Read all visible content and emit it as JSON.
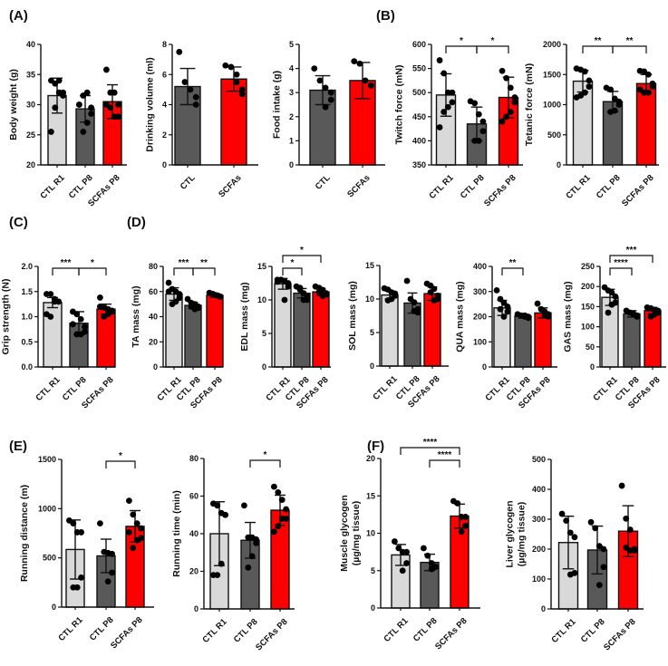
{
  "colors": {
    "CTL R1": "#d9d9d9",
    "CTL P8": "#595959",
    "SCFAs P8": "#ff0000",
    "CTL": "#595959",
    "SCFAs": "#ff0000",
    "point": "#000000"
  },
  "panel_labels": [
    "(A)",
    "(B)",
    "(C)",
    "(D)",
    "(E)",
    "(F)"
  ],
  "chart_data": [
    {
      "type": "bar",
      "panel": "(A)",
      "ylabel": "Body weight (g)",
      "ylim": [
        20,
        40
      ],
      "yticks": [
        20,
        25,
        30,
        35,
        40
      ],
      "categories": [
        "CTL R1",
        "CTL P8",
        "SCFAs P8"
      ],
      "means": [
        31.5,
        29.3,
        30.5
      ],
      "sd": [
        2.9,
        2.2,
        2.8
      ],
      "points": [
        [
          34,
          33.5,
          34,
          32,
          31.5,
          32,
          29.5,
          25.5
        ],
        [
          30,
          31.5,
          32,
          29.5,
          28.5,
          27,
          25.5,
          30
        ],
        [
          35.8,
          32,
          32,
          30,
          28,
          28,
          29.5,
          30
        ]
      ],
      "significance": []
    },
    {
      "type": "bar",
      "panel": "(A)",
      "ylabel": "Drinking volume (ml)",
      "ylim": [
        0,
        8
      ],
      "yticks": [
        0,
        2,
        4,
        6,
        8
      ],
      "categories": [
        "CTL",
        "SCFAs"
      ],
      "means": [
        5.2,
        5.7
      ],
      "sd": [
        1.2,
        0.8
      ],
      "points": [
        [
          7.5,
          5.5,
          5,
          4.5,
          4
        ],
        [
          6.6,
          6.5,
          6,
          5,
          4.7,
          5.5
        ]
      ],
      "significance": []
    },
    {
      "type": "bar",
      "panel": "(A)",
      "ylabel": "Food intake (g)",
      "ylim": [
        0,
        5
      ],
      "yticks": [
        0,
        1,
        2,
        3,
        4,
        5
      ],
      "categories": [
        "CTL",
        "SCFAs"
      ],
      "means": [
        3.1,
        3.5
      ],
      "sd": [
        0.6,
        0.75
      ],
      "points": [
        [
          4,
          3.5,
          3.2,
          3,
          2.7,
          2.4
        ],
        [
          4.3,
          4.2,
          3.5,
          3.3,
          3.3
        ]
      ],
      "significance": []
    },
    {
      "type": "bar",
      "panel": "(B)",
      "ylabel": "Twitch force (mN)",
      "ylim": [
        350,
        600
      ],
      "yticks": [
        350,
        400,
        450,
        500,
        550,
        600
      ],
      "categories": [
        "CTL R1",
        "CTL P8",
        "SCFAs P8"
      ],
      "means": [
        495,
        435,
        490
      ],
      "sd": [
        44,
        35,
        42
      ],
      "points": [
        [
          567,
          540,
          500,
          500,
          480,
          470,
          460,
          428
        ],
        [
          482,
          478,
          455,
          440,
          420,
          400,
          400
        ],
        [
          545,
          530,
          510,
          490,
          480,
          460,
          450,
          440
        ]
      ],
      "significance": [
        {
          "from": 0,
          "to": 1,
          "label": "*"
        },
        {
          "from": 1,
          "to": 2,
          "label": "*"
        }
      ]
    },
    {
      "type": "bar",
      "panel": "(B)",
      "ylabel": "Tetanic force (mN)",
      "ylim": [
        0,
        2000
      ],
      "yticks": [
        0,
        500,
        1000,
        1500,
        2000
      ],
      "categories": [
        "CTL R1",
        "CTL P8",
        "SCFAs P8"
      ],
      "means": [
        1390,
        1050,
        1350
      ],
      "sd": [
        180,
        170,
        150
      ],
      "points": [
        [
          1600,
          1580,
          1550,
          1400,
          1300,
          1200,
          1150,
          1120
        ],
        [
          1280,
          1250,
          1100,
          1050,
          1000,
          900,
          880
        ],
        [
          1560,
          1550,
          1500,
          1350,
          1300,
          1200,
          1200,
          1250
        ]
      ],
      "significance": [
        {
          "from": 0,
          "to": 1,
          "label": "**"
        },
        {
          "from": 1,
          "to": 2,
          "label": "**"
        }
      ]
    },
    {
      "type": "bar",
      "panel": "(C)",
      "ylabel": "Grip strength (N)",
      "ylim": [
        0,
        2
      ],
      "yticks": [
        "0.0",
        "0.5",
        "1.0",
        "1.5",
        "2.0"
      ],
      "categories": [
        "CTL R1",
        "CTL P8",
        "SCFAs P8"
      ],
      "means": [
        1.28,
        0.87,
        1.15
      ],
      "sd": [
        0.1,
        0.23,
        0.1
      ],
      "points": [
        [
          1.45,
          1.45,
          1.35,
          1.3,
          1.3,
          1.3,
          1.0,
          1.05
        ],
        [
          1.1,
          1.05,
          0.95,
          0.8,
          0.7,
          0.65,
          0.65,
          0.85
        ],
        [
          1.38,
          1.18,
          1.15,
          1.12,
          1.1,
          1.05,
          1.0,
          1.2
        ]
      ],
      "significance": [
        {
          "from": 0,
          "to": 1,
          "label": "***"
        },
        {
          "from": 1,
          "to": 2,
          "label": "*"
        }
      ]
    },
    {
      "type": "bar",
      "panel": "(D)",
      "ylabel": "TA mass (mg)",
      "ylim": [
        0,
        80
      ],
      "yticks": [
        0,
        20,
        40,
        60,
        80
      ],
      "categories": [
        "CTL R1",
        "CTL P8",
        "SCFAs P8"
      ],
      "means": [
        58,
        49,
        57
      ],
      "sd": [
        5,
        2.5,
        1.5
      ],
      "points": [
        [
          67,
          62,
          60,
          58,
          55,
          52,
          50,
          60
        ],
        [
          54,
          51,
          50,
          48,
          47,
          46,
          48
        ],
        [
          59,
          58,
          57,
          56,
          56,
          57,
          58
        ]
      ],
      "significance": [
        {
          "from": 0,
          "to": 1,
          "label": "***"
        },
        {
          "from": 1,
          "to": 2,
          "label": "**"
        }
      ]
    },
    {
      "type": "bar",
      "panel": "(D)",
      "ylabel": "EDL mass (mg)",
      "ylim": [
        0,
        15
      ],
      "yticks": [
        0,
        5,
        10,
        15
      ],
      "categories": [
        "CTL R1",
        "CTL P8",
        "SCFAs P8"
      ],
      "means": [
        12.4,
        11,
        11.2
      ],
      "sd": [
        0.8,
        0.7,
        0.5
      ],
      "points": [
        [
          13,
          13,
          12.8,
          12.5,
          12,
          10,
          13,
          12.7
        ],
        [
          12,
          11.8,
          11,
          10.5,
          10,
          10,
          11.5
        ],
        [
          12,
          11.8,
          11.5,
          11,
          10.8,
          10.6,
          11.2
        ]
      ],
      "significance": [
        {
          "from": 0,
          "to": 1,
          "label": "*"
        },
        {
          "from": 0,
          "to": 2,
          "label": "*"
        }
      ]
    },
    {
      "type": "bar",
      "panel": "(D)",
      "ylabel": "SOL mass (mg)",
      "ylim": [
        0,
        15
      ],
      "yticks": [
        0,
        5,
        10,
        15
      ],
      "categories": [
        "CTL R1",
        "CTL P8",
        "SCFAs P8"
      ],
      "means": [
        10.6,
        9.4,
        10.8
      ],
      "sd": [
        0.6,
        1.5,
        1.0
      ],
      "points": [
        [
          11.6,
          11.4,
          11,
          10.8,
          10.5,
          10,
          9.8
        ],
        [
          12.7,
          10,
          9.5,
          8.5,
          8,
          8.2
        ],
        [
          12.3,
          12,
          11.5,
          10.5,
          10,
          9.8,
          11
        ]
      ],
      "significance": []
    },
    {
      "type": "bar",
      "panel": "(D)",
      "ylabel": "QUA mass (mg)",
      "ylim": [
        0,
        400
      ],
      "yticks": [
        0,
        100,
        200,
        300,
        400
      ],
      "categories": [
        "CTL R1",
        "CTL P8",
        "SCFAs P8"
      ],
      "means": [
        235,
        202,
        215
      ],
      "sd": [
        30,
        8,
        20
      ],
      "points": [
        [
          305,
          270,
          255,
          240,
          220,
          200,
          230
        ],
        [
          210,
          205,
          200,
          195,
          200,
          205
        ],
        [
          252,
          230,
          220,
          210,
          200,
          205
        ]
      ],
      "significance": [
        {
          "from": 0,
          "to": 1,
          "label": "**"
        }
      ]
    },
    {
      "type": "bar",
      "panel": "(D)",
      "ylabel": "GAS mass (mg)",
      "ylim": [
        0,
        250
      ],
      "yticks": [
        0,
        50,
        100,
        150,
        200,
        250
      ],
      "categories": [
        "CTL R1",
        "CTL P8",
        "SCFAs P8"
      ],
      "means": [
        173,
        132,
        140
      ],
      "sd": [
        20,
        8,
        8
      ],
      "points": [
        [
          198,
          190,
          185,
          175,
          160,
          155,
          135
        ],
        [
          140,
          135,
          130,
          128,
          125,
          132
        ],
        [
          148,
          146,
          142,
          140,
          135,
          130,
          125
        ]
      ],
      "significance": [
        {
          "from": 0,
          "to": 1,
          "label": "****"
        },
        {
          "from": 0,
          "to": 2,
          "label": "***"
        }
      ]
    },
    {
      "type": "bar",
      "panel": "(E)",
      "ylabel": "Running distance (m)",
      "ylim": [
        0,
        1500
      ],
      "yticks": [
        0,
        500,
        1000,
        1500
      ],
      "categories": [
        "CTL R1",
        "CTL P8",
        "SCFAs P8"
      ],
      "means": [
        585,
        520,
        820
      ],
      "sd": [
        300,
        170,
        160
      ],
      "points": [
        [
          880,
          850,
          760,
          760,
          300,
          200,
          200
        ],
        [
          850,
          560,
          550,
          540,
          350,
          260
        ],
        [
          1080,
          940,
          850,
          800,
          700,
          680,
          600,
          760
        ]
      ],
      "significance": [
        {
          "from": 1,
          "to": 2,
          "label": "*"
        }
      ]
    },
    {
      "type": "bar",
      "panel": "(E)",
      "ylabel": "Running time (min)",
      "ylim": [
        0,
        80
      ],
      "yticks": [
        0,
        20,
        40,
        60,
        80
      ],
      "categories": [
        "CTL R1",
        "CTL P8",
        "SCFAs P8"
      ],
      "means": [
        40,
        36.5,
        52.5
      ],
      "sd": [
        17,
        9.5,
        8
      ],
      "points": [
        [
          56,
          55,
          51,
          50,
          50,
          24,
          18,
          18
        ],
        [
          55,
          38,
          38,
          37,
          35,
          28,
          22
        ],
        [
          65,
          62,
          58,
          53,
          48,
          48,
          44,
          41
        ]
      ],
      "significance": [
        {
          "from": 1,
          "to": 2,
          "label": "*"
        }
      ]
    },
    {
      "type": "bar",
      "panel": "(F)",
      "ylabel": "Muscle glycogen",
      "ylabel2": "(µg/mg tissue)",
      "ylim": [
        0,
        20
      ],
      "yticks": [
        0,
        5,
        10,
        15,
        20
      ],
      "categories": [
        "CTL R1",
        "CTL P8",
        "SCFAs P8"
      ],
      "means": [
        7.1,
        6.1,
        12.3
      ],
      "sd": [
        1.4,
        1.1,
        1.6
      ],
      "points": [
        [
          8.9,
          8,
          7.5,
          7.5,
          6,
          5
        ],
        [
          8,
          7,
          6,
          5.5,
          5.5,
          5.2
        ],
        [
          14.3,
          14,
          12.2,
          12.2,
          11,
          10.2
        ]
      ],
      "significance": [
        {
          "from": 1,
          "to": 2,
          "label": "****"
        },
        {
          "from": 0,
          "to": 2,
          "label": "****"
        }
      ]
    },
    {
      "type": "bar",
      "panel": "(F)",
      "ylabel": "Liver glycogen",
      "ylabel2": "(µg/mg tissue)",
      "ylim": [
        0,
        500
      ],
      "yticks": [
        0,
        100,
        200,
        300,
        400,
        500
      ],
      "categories": [
        "CTL R1",
        "CTL P8",
        "SCFAs P8"
      ],
      "means": [
        222,
        197,
        260
      ],
      "sd": [
        88,
        80,
        85
      ],
      "points": [
        [
          318,
          295,
          255,
          240,
          120,
          115
        ],
        [
          290,
          270,
          210,
          200,
          140,
          80
        ],
        [
          412,
          302,
          265,
          200,
          195,
          195,
          205
        ]
      ],
      "significance": []
    }
  ]
}
